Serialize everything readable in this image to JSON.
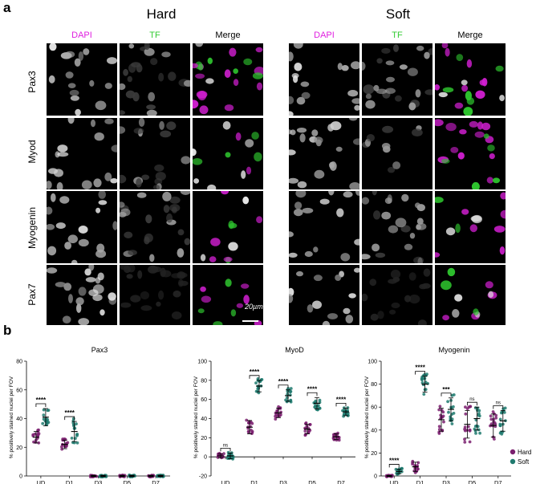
{
  "panel_a_label": "a",
  "panel_b_label": "b",
  "conditions": [
    "Hard",
    "Soft"
  ],
  "channels": [
    {
      "label": "DAPI",
      "color": "#e020e0"
    },
    {
      "label": "TF",
      "color": "#33cc33"
    },
    {
      "label": "Merge",
      "color": "#000000"
    }
  ],
  "rows": [
    "Pax3",
    "Myod",
    "Myogenin",
    "Pax7"
  ],
  "scale_bar": "20µm",
  "legend": {
    "hard": "Hard",
    "soft": "Soft",
    "hard_color": "#7a1f6e",
    "soft_color": "#1f7a6e"
  },
  "chart_data": [
    {
      "type": "scatter",
      "title": "Pax3",
      "ylabel": "% positively stained nuclei per FOV",
      "ylim": [
        0,
        80
      ],
      "yticks": [
        0,
        20,
        40,
        60,
        80
      ],
      "categories": [
        "UD",
        "D1",
        "D3",
        "D5",
        "D7"
      ],
      "series": [
        {
          "name": "Hard",
          "means": [
            27,
            22,
            0,
            0,
            0
          ],
          "sd": [
            4,
            3,
            0.5,
            0.5,
            0.5
          ]
        },
        {
          "name": "Soft",
          "means": [
            41,
            31,
            0,
            0,
            0
          ],
          "sd": [
            6,
            7,
            0.5,
            0.5,
            0.5
          ]
        }
      ],
      "annotations": [
        {
          "category": "UD",
          "label": "****"
        },
        {
          "category": "D1",
          "label": "****"
        }
      ]
    },
    {
      "type": "scatter",
      "title": "MyoD",
      "ylabel": "% positively stained nuclei per FOV",
      "ylim": [
        -20,
        100
      ],
      "yticks": [
        -20,
        0,
        20,
        40,
        60,
        80,
        100
      ],
      "categories": [
        "UD",
        "D1",
        "D3",
        "D5",
        "D7"
      ],
      "series": [
        {
          "name": "Hard",
          "means": [
            1,
            31,
            46,
            29,
            21
          ],
          "sd": [
            2,
            7,
            5,
            5,
            3
          ]
        },
        {
          "name": "Soft",
          "means": [
            1,
            74,
            64,
            56,
            47
          ],
          "sd": [
            3,
            6,
            6,
            6,
            4
          ]
        }
      ],
      "annotations": [
        {
          "category": "UD",
          "label": "ns"
        },
        {
          "category": "D1",
          "label": "****"
        },
        {
          "category": "D3",
          "label": "****"
        },
        {
          "category": "D5",
          "label": "****"
        },
        {
          "category": "D7",
          "label": "****"
        }
      ]
    },
    {
      "type": "scatter",
      "title": "Myogenin",
      "ylabel": "% positively stained nuclei per FOV",
      "ylim": [
        0,
        100
      ],
      "yticks": [
        0,
        20,
        40,
        60,
        80,
        100
      ],
      "categories": [
        "UD",
        "D1",
        "D3",
        "D5",
        "D7"
      ],
      "series": [
        {
          "name": "Hard",
          "means": [
            0,
            8,
            49,
            45,
            44
          ],
          "sd": [
            0.5,
            4,
            10,
            12,
            10
          ]
        },
        {
          "name": "Soft",
          "means": [
            4,
            80,
            58,
            50,
            48
          ],
          "sd": [
            2,
            7,
            10,
            10,
            9
          ]
        }
      ],
      "annotations": [
        {
          "category": "UD",
          "label": "****"
        },
        {
          "category": "D1",
          "label": "****"
        },
        {
          "category": "D3",
          "label": "***"
        },
        {
          "category": "D5",
          "label": "ns"
        },
        {
          "category": "D7",
          "label": "ns"
        }
      ]
    }
  ]
}
